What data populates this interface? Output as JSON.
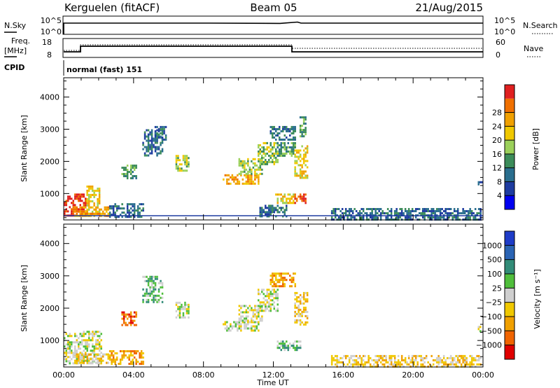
{
  "header": {
    "radar": "Kerguelen (fitACF)",
    "beam": "Beam 05",
    "date": "21/Aug/2015"
  },
  "strip": {
    "nsky_label": "N.Sky",
    "nsearch_label": "N.Search",
    "freq_label_1": "Freq.",
    "freq_label_2": "[MHz]",
    "nave_label": "Nave",
    "cpid_label": "CPID",
    "cpid_value": "normal (fast) 151",
    "noise_left_ticks": [
      "10^5",
      "10^0"
    ],
    "noise_right_ticks": [
      "10^5",
      "10^0"
    ],
    "freq_ticks": [
      "18",
      "8"
    ],
    "nave_ticks": [
      "60",
      "0"
    ]
  },
  "colors": {
    "power": [
      "#0000f0",
      "#1e3ca0",
      "#2a6e8e",
      "#3c8c5a",
      "#9bd05a",
      "#f0c800",
      "#f0a000",
      "#f07000",
      "#e02020"
    ],
    "velocity": [
      "#1e3cc8",
      "#2a64b4",
      "#328c78",
      "#50be3c",
      "#cfcfcf",
      "#f0c800",
      "#f0a000",
      "#f06400",
      "#e00000"
    ]
  },
  "chart_data": [
    {
      "type": "heatmap",
      "name": "power",
      "title": "",
      "xlabel": "",
      "ylabel": "Slant Range [km]",
      "x_ticks": [
        "00:00",
        "04:00",
        "08:00",
        "12:00",
        "16:00",
        "20:00",
        "00:00"
      ],
      "xlim": [
        0,
        24
      ],
      "y_ticks": [
        1000,
        2000,
        3000,
        4000
      ],
      "ylim": [
        180,
        4600
      ],
      "colorbar": {
        "label": "Power [dB]",
        "ticks": [
          "4",
          "8",
          "12",
          "16",
          "20",
          "24",
          "28"
        ],
        "levels": [
          0,
          4,
          8,
          12,
          16,
          20,
          24,
          28,
          32
        ]
      },
      "regions": [
        {
          "t0": 0.0,
          "t1": 1.3,
          "r0": 300,
          "r1": 1000,
          "level": 8
        },
        {
          "t0": 1.3,
          "t1": 2.1,
          "r0": 350,
          "r1": 1250,
          "level": 5
        },
        {
          "t0": 0.6,
          "t1": 2.6,
          "r0": 300,
          "r1": 600,
          "level": 6
        },
        {
          "t0": 2.6,
          "t1": 4.6,
          "r0": 300,
          "r1": 700,
          "level": 2
        },
        {
          "t0": 3.3,
          "t1": 4.2,
          "r0": 1500,
          "r1": 1900,
          "level": 3
        },
        {
          "t0": 4.5,
          "t1": 5.7,
          "r0": 2200,
          "r1": 3000,
          "level": 2
        },
        {
          "t0": 6.4,
          "t1": 7.2,
          "r0": 1700,
          "r1": 2200,
          "level": 4
        },
        {
          "t0": 5.2,
          "t1": 5.9,
          "r0": 2700,
          "r1": 3100,
          "level": 2
        },
        {
          "t0": 9.1,
          "t1": 11.2,
          "r0": 1300,
          "r1": 1600,
          "level": 6
        },
        {
          "t0": 10.0,
          "t1": 11.4,
          "r0": 1600,
          "r1": 2100,
          "level": 4
        },
        {
          "t0": 11.1,
          "t1": 12.3,
          "r0": 1900,
          "r1": 2600,
          "level": 4
        },
        {
          "t0": 12.2,
          "t1": 13.3,
          "r0": 2200,
          "r1": 2600,
          "level": 3
        },
        {
          "t0": 13.2,
          "t1": 14.0,
          "r0": 1500,
          "r1": 2500,
          "level": 5
        },
        {
          "t0": 11.8,
          "t1": 13.3,
          "r0": 2700,
          "r1": 3100,
          "level": 2
        },
        {
          "t0": 13.5,
          "t1": 13.9,
          "r0": 2800,
          "r1": 3400,
          "level": 3
        },
        {
          "t0": 12.1,
          "t1": 13.2,
          "r0": 700,
          "r1": 1000,
          "level": 5
        },
        {
          "t0": 13.2,
          "t1": 13.9,
          "r0": 700,
          "r1": 1000,
          "level": 8
        },
        {
          "t0": 11.2,
          "t1": 12.8,
          "r0": 300,
          "r1": 650,
          "level": 2
        },
        {
          "t0": 15.3,
          "t1": 23.9,
          "r0": 200,
          "r1": 550,
          "level": 2
        },
        {
          "t0": 23.7,
          "t1": 24.0,
          "r0": 1300,
          "r1": 1450,
          "level": 2
        }
      ]
    },
    {
      "type": "heatmap",
      "name": "velocity",
      "title": "",
      "xlabel": "Time UT",
      "ylabel": "Slant Range [km]",
      "x_ticks": [
        "00:00",
        "04:00",
        "08:00",
        "12:00",
        "16:00",
        "20:00",
        "00:00"
      ],
      "xlim": [
        0,
        24
      ],
      "y_ticks": [
        1000,
        2000,
        3000,
        4000
      ],
      "ylim": [
        180,
        4600
      ],
      "colorbar": {
        "label": "Velocity [m s⁻¹]",
        "ticks": [
          "1000",
          "500",
          "100",
          "25",
          "−25",
          "−100",
          "−500",
          "−1000"
        ]
      },
      "regions": [
        {
          "t0": 0.0,
          "t1": 2.2,
          "r0": 300,
          "r1": 1300,
          "level": 4
        },
        {
          "t0": 0.6,
          "t1": 2.6,
          "r0": 300,
          "r1": 600,
          "level": 5
        },
        {
          "t0": 2.6,
          "t1": 4.6,
          "r0": 300,
          "r1": 700,
          "level": 6
        },
        {
          "t0": 3.3,
          "t1": 4.2,
          "r0": 1500,
          "r1": 1900,
          "level": 7
        },
        {
          "t0": 4.5,
          "t1": 5.7,
          "r0": 2200,
          "r1": 3000,
          "level": 3
        },
        {
          "t0": 6.4,
          "t1": 7.2,
          "r0": 1700,
          "r1": 2200,
          "level": 4
        },
        {
          "t0": 9.1,
          "t1": 11.2,
          "r0": 1300,
          "r1": 1600,
          "level": 4
        },
        {
          "t0": 10.0,
          "t1": 11.4,
          "r0": 1600,
          "r1": 2100,
          "level": 4
        },
        {
          "t0": 11.1,
          "t1": 12.3,
          "r0": 1900,
          "r1": 2600,
          "level": 4
        },
        {
          "t0": 13.2,
          "t1": 14.0,
          "r0": 1500,
          "r1": 2500,
          "level": 5
        },
        {
          "t0": 11.8,
          "t1": 13.3,
          "r0": 2700,
          "r1": 3100,
          "level": 6
        },
        {
          "t0": 12.2,
          "t1": 13.6,
          "r0": 700,
          "r1": 1000,
          "level": 3
        },
        {
          "t0": 15.3,
          "t1": 23.9,
          "r0": 200,
          "r1": 550,
          "level": 5
        },
        {
          "t0": 23.7,
          "t1": 24.0,
          "r0": 1300,
          "r1": 1450,
          "level": 4
        }
      ]
    }
  ]
}
